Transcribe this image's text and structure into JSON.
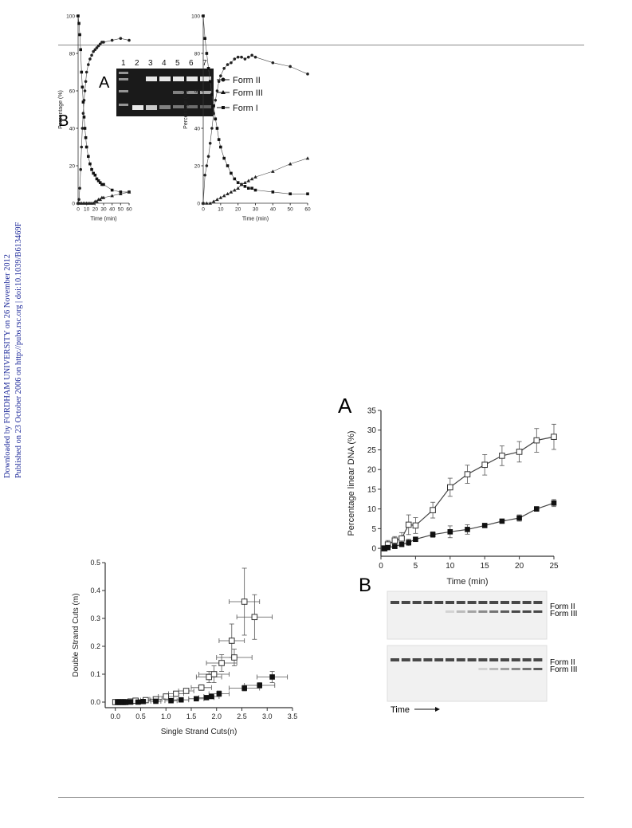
{
  "sidebar": {
    "line1": "Downloaded by FORDHAM UNIVERSITY on 26 November 2012",
    "line2": "Published on 23 October 2006 on http://pubs.rsc.org | doi:10.1039/B613469F"
  },
  "fig1": {
    "panel_a_label": "A",
    "panel_b_label": "B",
    "lanes": [
      "1",
      "2",
      "3",
      "4",
      "5",
      "6",
      "7"
    ],
    "form_labels": [
      "Form II",
      "Form III",
      "Form I"
    ],
    "chart_data": [
      {
        "type": "line",
        "title": "",
        "xlabel": "Time (min)",
        "ylabel": "Percentage (%)",
        "xlim": [
          0,
          60
        ],
        "ylim": [
          0,
          100
        ],
        "xticks": [
          0,
          10,
          20,
          30,
          40,
          50,
          60
        ],
        "yticks": [
          0,
          20,
          40,
          60,
          80,
          100
        ],
        "series": [
          {
            "marker": "circle",
            "x": [
              0,
              1,
              2,
              3,
              4,
              5,
              6,
              7,
              8,
              9,
              10,
              12,
              14,
              16,
              18,
              20,
              22,
              24,
              26,
              28,
              30,
              40,
              50,
              60
            ],
            "y": [
              0,
              2,
              8,
              18,
              30,
              40,
              48,
              55,
              60,
              65,
              70,
              74,
              77,
              79,
              81,
              82,
              83,
              84,
              85,
              86,
              86,
              87,
              88,
              87
            ]
          },
          {
            "marker": "square",
            "x": [
              0,
              1,
              2,
              3,
              4,
              5,
              6,
              7,
              8,
              9,
              10,
              12,
              14,
              16,
              18,
              20,
              22,
              24,
              26,
              28,
              30,
              40,
              50,
              60
            ],
            "y": [
              100,
              96,
              90,
              82,
              70,
              62,
              54,
              46,
              40,
              35,
              30,
              25,
              21,
              18,
              16,
              15,
              13,
              12,
              11,
              10,
              10,
              7,
              6,
              6
            ]
          },
          {
            "marker": "triangle",
            "x": [
              0,
              2,
              4,
              6,
              8,
              10,
              12,
              14,
              16,
              18,
              20,
              22,
              24,
              26,
              28,
              30,
              40,
              50,
              60
            ],
            "y": [
              0,
              0,
              0,
              0,
              0,
              0,
              0,
              0,
              0,
              0,
              1,
              1,
              2,
              2,
              3,
              3,
              4,
              5,
              6
            ]
          }
        ]
      },
      {
        "type": "line",
        "title": "",
        "xlabel": "Time (min)",
        "ylabel": "Percentage (%)",
        "xlim": [
          0,
          60
        ],
        "ylim": [
          0,
          100
        ],
        "xticks": [
          0,
          10,
          20,
          30,
          40,
          50,
          60
        ],
        "yticks": [
          0,
          20,
          40,
          60,
          80,
          100
        ],
        "series": [
          {
            "marker": "circle",
            "x": [
              0,
              1,
              2,
              3,
              4,
              5,
              6,
              7,
              8,
              9,
              10,
              12,
              14,
              16,
              18,
              20,
              22,
              24,
              26,
              28,
              30,
              40,
              50,
              60
            ],
            "y": [
              0,
              15,
              20,
              25,
              32,
              40,
              48,
              55,
              60,
              65,
              68,
              72,
              74,
              75,
              77,
              78,
              78,
              77,
              78,
              79,
              78,
              75,
              73,
              69
            ]
          },
          {
            "marker": "square",
            "x": [
              0,
              1,
              2,
              3,
              4,
              5,
              6,
              7,
              8,
              9,
              10,
              12,
              14,
              16,
              18,
              20,
              22,
              24,
              26,
              28,
              30,
              40,
              50,
              60
            ],
            "y": [
              100,
              88,
              80,
              72,
              65,
              58,
              52,
              45,
              40,
              34,
              30,
              24,
              20,
              16,
              13,
              11,
              10,
              9,
              8,
              8,
              7,
              6,
              5,
              5
            ]
          },
          {
            "marker": "triangle",
            "x": [
              0,
              2,
              4,
              6,
              8,
              10,
              12,
              14,
              16,
              18,
              20,
              22,
              24,
              26,
              28,
              30,
              40,
              50,
              60
            ],
            "y": [
              0,
              0,
              0,
              1,
              2,
              3,
              4,
              5,
              6,
              7,
              8,
              10,
              11,
              12,
              13,
              14,
              17,
              21,
              24
            ]
          }
        ]
      },
      {
        "type": "scatter",
        "title": "",
        "xlabel": "Single Strand Cuts(n)",
        "ylabel": "Double Strand Cuts (m)",
        "xlim": [
          -0.2,
          3.5
        ],
        "ylim": [
          -0.02,
          0.5
        ],
        "xticks": [
          0.0,
          0.5,
          1.0,
          1.5,
          2.0,
          2.5,
          3.0,
          3.5
        ],
        "yticks": [
          0.0,
          0.1,
          0.2,
          0.3,
          0.4,
          0.5
        ],
        "series": [
          {
            "marker": "open-square",
            "x": [
              0.0,
              0.05,
              0.1,
              0.15,
              0.2,
              0.3,
              0.4,
              0.6,
              0.8,
              1.0,
              1.2,
              1.4,
              1.7,
              1.85,
              1.95,
              2.1,
              2.3,
              2.35,
              2.55,
              2.75
            ],
            "y": [
              0,
              0,
              0,
              0,
              0,
              0.002,
              0.005,
              0.007,
              0.01,
              0.02,
              0.03,
              0.04,
              0.052,
              0.09,
              0.1,
              0.14,
              0.22,
              0.16,
              0.36,
              0.305
            ],
            "xerr": [
              0,
              0,
              0,
              0,
              0,
              0,
              0.05,
              0.1,
              0.12,
              0.15,
              0.15,
              0.15,
              0.2,
              0.25,
              0.3,
              0.3,
              0.25,
              0.35,
              0.3,
              0.35
            ],
            "yerr": [
              0,
              0,
              0,
              0,
              0,
              0,
              0,
              0,
              0,
              0,
              0,
              0,
              0.01,
              0.02,
              0.03,
              0.03,
              0.06,
              0.03,
              0.12,
              0.08
            ]
          },
          {
            "marker": "filled-square",
            "x": [
              0.05,
              0.1,
              0.15,
              0.2,
              0.3,
              0.45,
              0.55,
              0.8,
              1.1,
              1.3,
              1.6,
              1.8,
              1.9,
              2.05,
              2.55,
              2.85,
              3.1
            ],
            "y": [
              0,
              0,
              0,
              0,
              0,
              0,
              0.002,
              0.003,
              0.005,
              0.008,
              0.012,
              0.016,
              0.02,
              0.03,
              0.05,
              0.06,
              0.09
            ],
            "xerr": [
              0,
              0,
              0,
              0,
              0,
              0.05,
              0.05,
              0.1,
              0.12,
              0.15,
              0.15,
              0.15,
              0.15,
              0.2,
              0.3,
              0.3,
              0.3
            ],
            "yerr": [
              0,
              0,
              0,
              0,
              0,
              0,
              0,
              0,
              0,
              0,
              0,
              0,
              0,
              0.01,
              0.01,
              0.01,
              0.02
            ]
          }
        ]
      },
      {
        "type": "line",
        "title": "",
        "xlabel": "Time (min)",
        "ylabel": "Percentage linear DNA (%)",
        "xlim": [
          0,
          25
        ],
        "ylim": [
          -2,
          35
        ],
        "xticks": [
          0,
          5,
          10,
          15,
          20,
          25
        ],
        "yticks": [
          0,
          5,
          10,
          15,
          20,
          25,
          30,
          35
        ],
        "series": [
          {
            "marker": "open-square",
            "x": [
              0.5,
              1,
              2,
              3,
              4,
              5,
              7.5,
              10,
              12.5,
              15,
              17.5,
              20,
              22.5,
              25
            ],
            "y": [
              0,
              1,
              2,
              2.5,
              6,
              5.8,
              9.7,
              15.5,
              18.8,
              21.2,
              23.5,
              24.5,
              27.4,
              28.3
            ],
            "err": [
              0.5,
              1,
              1,
              1.5,
              2.5,
              2,
              2,
              2.3,
              2.3,
              2.6,
              2.5,
              2.6,
              3,
              3.2
            ]
          },
          {
            "marker": "filled-square",
            "x": [
              0.5,
              1,
              2,
              3,
              4,
              5,
              7.5,
              10,
              12.5,
              15,
              17.5,
              20,
              22.5,
              25
            ],
            "y": [
              0,
              0.2,
              0.5,
              1,
              1.5,
              2.3,
              3.5,
              4.2,
              4.8,
              5.8,
              6.9,
              7.7,
              10,
              11.5
            ],
            "err": [
              0.3,
              0.4,
              0.5,
              0.5,
              0.8,
              0.5,
              0.7,
              1.5,
              1.2,
              0.4,
              0.5,
              0.8,
              0.6,
              0.9
            ]
          }
        ]
      }
    ]
  },
  "fig4": {
    "panel_a_label": "A",
    "panel_b_label": "B",
    "gel_form_labels": [
      "Form II",
      "Form III"
    ],
    "time_label": "Time"
  }
}
